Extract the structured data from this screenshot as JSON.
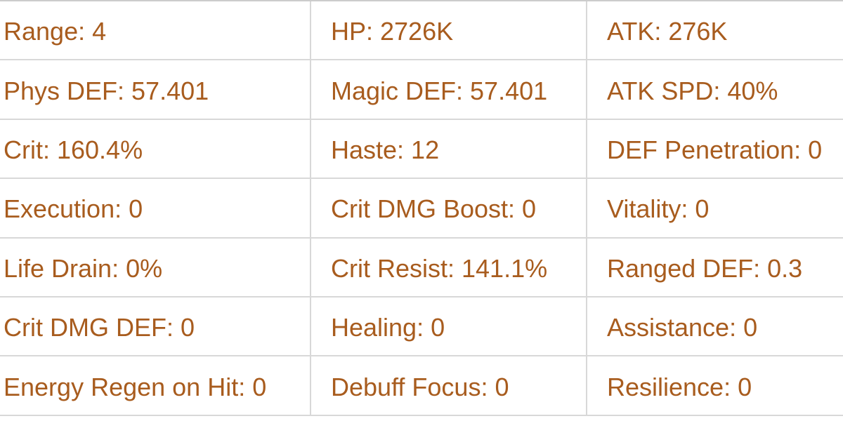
{
  "colors": {
    "stat_text": "#a85c1e",
    "grid_line": "#d8d8d8",
    "background": "#ffffff"
  },
  "table": {
    "rows": [
      [
        "Range: 4",
        "HP: 2726K",
        "ATK: 276K"
      ],
      [
        "Phys DEF: 57.401",
        "Magic DEF: 57.401",
        "ATK SPD: 40%"
      ],
      [
        "Crit: 160.4%",
        "Haste: 12",
        "DEF Penetration: 0"
      ],
      [
        "Execution: 0",
        "Crit DMG Boost: 0",
        "Vitality: 0"
      ],
      [
        "Life Drain: 0%",
        "Crit Resist: 141.1%",
        "Ranged DEF: 0.3"
      ],
      [
        "Crit DMG DEF: 0",
        "Healing: 0",
        "Assistance: 0"
      ],
      [
        "Energy Regen on Hit: 0",
        "Debuff Focus: 0",
        "Resilience: 0"
      ]
    ]
  }
}
